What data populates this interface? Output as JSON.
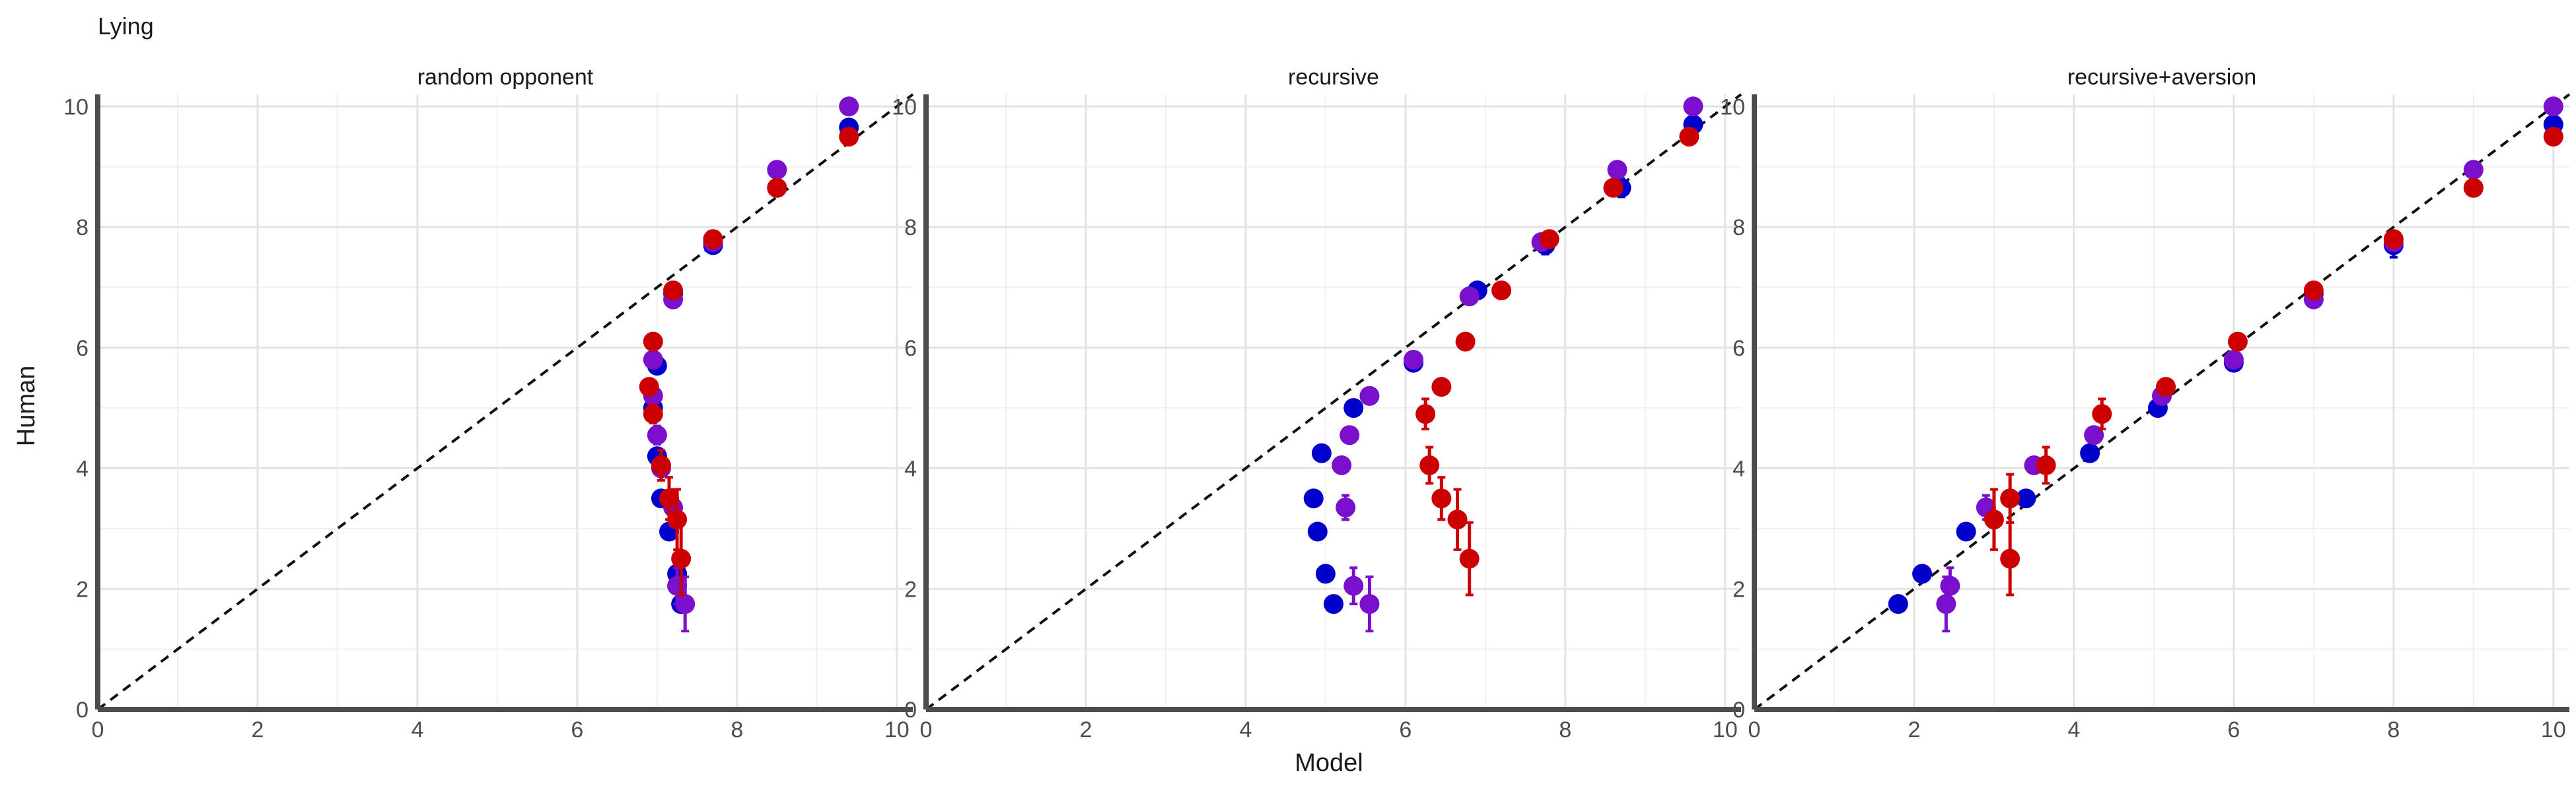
{
  "chart_data": {
    "type": "scatter",
    "title": "Lying",
    "xlabel": "Model",
    "ylabel": "Human",
    "xlim": [
      0,
      10.2
    ],
    "ylim": [
      0,
      10.2
    ],
    "x_ticks": [
      "0",
      "2",
      "4",
      "6",
      "8",
      "10"
    ],
    "y_ticks": [
      "0",
      "2",
      "4",
      "6",
      "8",
      "10"
    ],
    "grid": true,
    "reference_line": "y = x (dashed)",
    "series_colors": [
      "#0000cc",
      "#7a0fcc",
      "#cc0000"
    ],
    "panels": [
      {
        "title": "random opponent",
        "series": [
          {
            "color": "#0000cc",
            "points": [
              {
                "x": 9.4,
                "y": 9.65,
                "err": 0.1
              },
              {
                "x": 8.5,
                "y": 8.65,
                "err": 0.1
              },
              {
                "x": 7.7,
                "y": 7.7,
                "err": 0.12
              },
              {
                "x": 7.2,
                "y": 6.9,
                "err": 0.1
              },
              {
                "x": 7.0,
                "y": 5.7,
                "err": 0.1
              },
              {
                "x": 6.95,
                "y": 5.0,
                "err": 0.1
              },
              {
                "x": 7.0,
                "y": 4.2,
                "err": 0.1
              },
              {
                "x": 7.05,
                "y": 3.5,
                "err": 0.1
              },
              {
                "x": 7.15,
                "y": 2.95,
                "err": 0.1
              },
              {
                "x": 7.25,
                "y": 2.25,
                "err": 0.1
              },
              {
                "x": 7.3,
                "y": 1.75,
                "err": 0.1
              }
            ]
          },
          {
            "color": "#7a0fcc",
            "points": [
              {
                "x": 9.4,
                "y": 10.0,
                "err": 0.05
              },
              {
                "x": 8.5,
                "y": 8.95,
                "err": 0.08
              },
              {
                "x": 7.7,
                "y": 7.75,
                "err": 0.1
              },
              {
                "x": 7.2,
                "y": 6.8,
                "err": 0.1
              },
              {
                "x": 6.95,
                "y": 5.8,
                "err": 0.1
              },
              {
                "x": 6.95,
                "y": 5.2,
                "err": 0.1
              },
              {
                "x": 7.0,
                "y": 4.55,
                "err": 0.15
              },
              {
                "x": 7.05,
                "y": 4.0,
                "err": 0.1
              },
              {
                "x": 7.2,
                "y": 3.35,
                "err": 0.3
              },
              {
                "x": 7.25,
                "y": 2.05,
                "err": 0.3
              },
              {
                "x": 7.35,
                "y": 1.75,
                "err": 0.45
              }
            ]
          },
          {
            "color": "#cc0000",
            "points": [
              {
                "x": 9.4,
                "y": 9.5,
                "err": 0.05
              },
              {
                "x": 8.5,
                "y": 8.65,
                "err": 0.1
              },
              {
                "x": 7.7,
                "y": 7.8,
                "err": 0.1
              },
              {
                "x": 7.2,
                "y": 6.95,
                "err": 0.1
              },
              {
                "x": 6.95,
                "y": 6.1,
                "err": 0.1
              },
              {
                "x": 6.9,
                "y": 5.35,
                "err": 0.1
              },
              {
                "x": 6.95,
                "y": 4.9,
                "err": 0.15
              },
              {
                "x": 7.05,
                "y": 4.05,
                "err": 0.25
              },
              {
                "x": 7.15,
                "y": 3.5,
                "err": 0.35
              },
              {
                "x": 7.25,
                "y": 3.15,
                "err": 0.5
              },
              {
                "x": 7.3,
                "y": 2.5,
                "err": 0.6
              }
            ]
          }
        ]
      },
      {
        "title": "recursive",
        "series": [
          {
            "color": "#0000cc",
            "points": [
              {
                "x": 9.6,
                "y": 9.7,
                "err": 0.1
              },
              {
                "x": 8.7,
                "y": 8.65,
                "err": 0.15
              },
              {
                "x": 7.75,
                "y": 7.7,
                "err": 0.15
              },
              {
                "x": 6.9,
                "y": 6.95,
                "err": 0.1
              },
              {
                "x": 6.1,
                "y": 5.75,
                "err": 0.1
              },
              {
                "x": 5.35,
                "y": 5.0,
                "err": 0.1
              },
              {
                "x": 4.95,
                "y": 4.25,
                "err": 0.1
              },
              {
                "x": 4.85,
                "y": 3.5,
                "err": 0.1
              },
              {
                "x": 4.9,
                "y": 2.95,
                "err": 0.1
              },
              {
                "x": 5.0,
                "y": 2.25,
                "err": 0.1
              },
              {
                "x": 5.1,
                "y": 1.75,
                "err": 0.1
              }
            ]
          },
          {
            "color": "#7a0fcc",
            "points": [
              {
                "x": 9.6,
                "y": 10.0,
                "err": 0.05
              },
              {
                "x": 8.65,
                "y": 8.95,
                "err": 0.08
              },
              {
                "x": 7.7,
                "y": 7.75,
                "err": 0.1
              },
              {
                "x": 6.8,
                "y": 6.85,
                "err": 0.1
              },
              {
                "x": 6.1,
                "y": 5.8,
                "err": 0.1
              },
              {
                "x": 5.55,
                "y": 5.2,
                "err": 0.1
              },
              {
                "x": 5.3,
                "y": 4.55,
                "err": 0.12
              },
              {
                "x": 5.2,
                "y": 4.05,
                "err": 0.1
              },
              {
                "x": 5.25,
                "y": 3.35,
                "err": 0.2
              },
              {
                "x": 5.35,
                "y": 2.05,
                "err": 0.3
              },
              {
                "x": 5.55,
                "y": 1.75,
                "err": 0.45
              }
            ]
          },
          {
            "color": "#cc0000",
            "points": [
              {
                "x": 9.55,
                "y": 9.5,
                "err": 0.05
              },
              {
                "x": 8.6,
                "y": 8.65,
                "err": 0.1
              },
              {
                "x": 7.8,
                "y": 7.8,
                "err": 0.1
              },
              {
                "x": 7.2,
                "y": 6.95,
                "err": 0.1
              },
              {
                "x": 6.75,
                "y": 6.1,
                "err": 0.1
              },
              {
                "x": 6.45,
                "y": 5.35,
                "err": 0.1
              },
              {
                "x": 6.25,
                "y": 4.9,
                "err": 0.25
              },
              {
                "x": 6.3,
                "y": 4.05,
                "err": 0.3
              },
              {
                "x": 6.45,
                "y": 3.5,
                "err": 0.35
              },
              {
                "x": 6.65,
                "y": 3.15,
                "err": 0.5
              },
              {
                "x": 6.8,
                "y": 2.5,
                "err": 0.6
              }
            ]
          }
        ]
      },
      {
        "title": "recursive+aversion",
        "series": [
          {
            "color": "#0000cc",
            "points": [
              {
                "x": 10.0,
                "y": 9.7,
                "err": 0.1
              },
              {
                "x": 9.0,
                "y": 8.65,
                "err": 0.12
              },
              {
                "x": 8.0,
                "y": 7.7,
                "err": 0.2
              },
              {
                "x": 7.0,
                "y": 6.9,
                "err": 0.1
              },
              {
                "x": 6.0,
                "y": 5.75,
                "err": 0.1
              },
              {
                "x": 5.05,
                "y": 5.0,
                "err": 0.1
              },
              {
                "x": 4.2,
                "y": 4.25,
                "err": 0.1
              },
              {
                "x": 3.4,
                "y": 3.5,
                "err": 0.1
              },
              {
                "x": 2.65,
                "y": 2.95,
                "err": 0.1
              },
              {
                "x": 2.1,
                "y": 2.25,
                "err": 0.1
              },
              {
                "x": 1.8,
                "y": 1.75,
                "err": 0.1
              }
            ]
          },
          {
            "color": "#7a0fcc",
            "points": [
              {
                "x": 10.0,
                "y": 10.0,
                "err": 0.05
              },
              {
                "x": 9.0,
                "y": 8.95,
                "err": 0.08
              },
              {
                "x": 8.0,
                "y": 7.75,
                "err": 0.1
              },
              {
                "x": 7.0,
                "y": 6.8,
                "err": 0.1
              },
              {
                "x": 6.0,
                "y": 5.8,
                "err": 0.1
              },
              {
                "x": 5.1,
                "y": 5.2,
                "err": 0.1
              },
              {
                "x": 4.25,
                "y": 4.55,
                "err": 0.12
              },
              {
                "x": 3.5,
                "y": 4.05,
                "err": 0.1
              },
              {
                "x": 2.9,
                "y": 3.35,
                "err": 0.2
              },
              {
                "x": 2.45,
                "y": 2.05,
                "err": 0.3
              },
              {
                "x": 2.4,
                "y": 1.75,
                "err": 0.45
              }
            ]
          },
          {
            "color": "#cc0000",
            "points": [
              {
                "x": 10.0,
                "y": 9.5,
                "err": 0.05
              },
              {
                "x": 9.0,
                "y": 8.65,
                "err": 0.1
              },
              {
                "x": 8.0,
                "y": 7.8,
                "err": 0.1
              },
              {
                "x": 7.0,
                "y": 6.95,
                "err": 0.1
              },
              {
                "x": 6.05,
                "y": 6.1,
                "err": 0.1
              },
              {
                "x": 5.15,
                "y": 5.35,
                "err": 0.1
              },
              {
                "x": 4.35,
                "y": 4.9,
                "err": 0.25
              },
              {
                "x": 3.65,
                "y": 4.05,
                "err": 0.3
              },
              {
                "x": 3.2,
                "y": 3.5,
                "err": 0.4
              },
              {
                "x": 3.0,
                "y": 3.15,
                "err": 0.5
              },
              {
                "x": 3.2,
                "y": 2.5,
                "err": 0.6
              }
            ]
          }
        ]
      }
    ]
  }
}
